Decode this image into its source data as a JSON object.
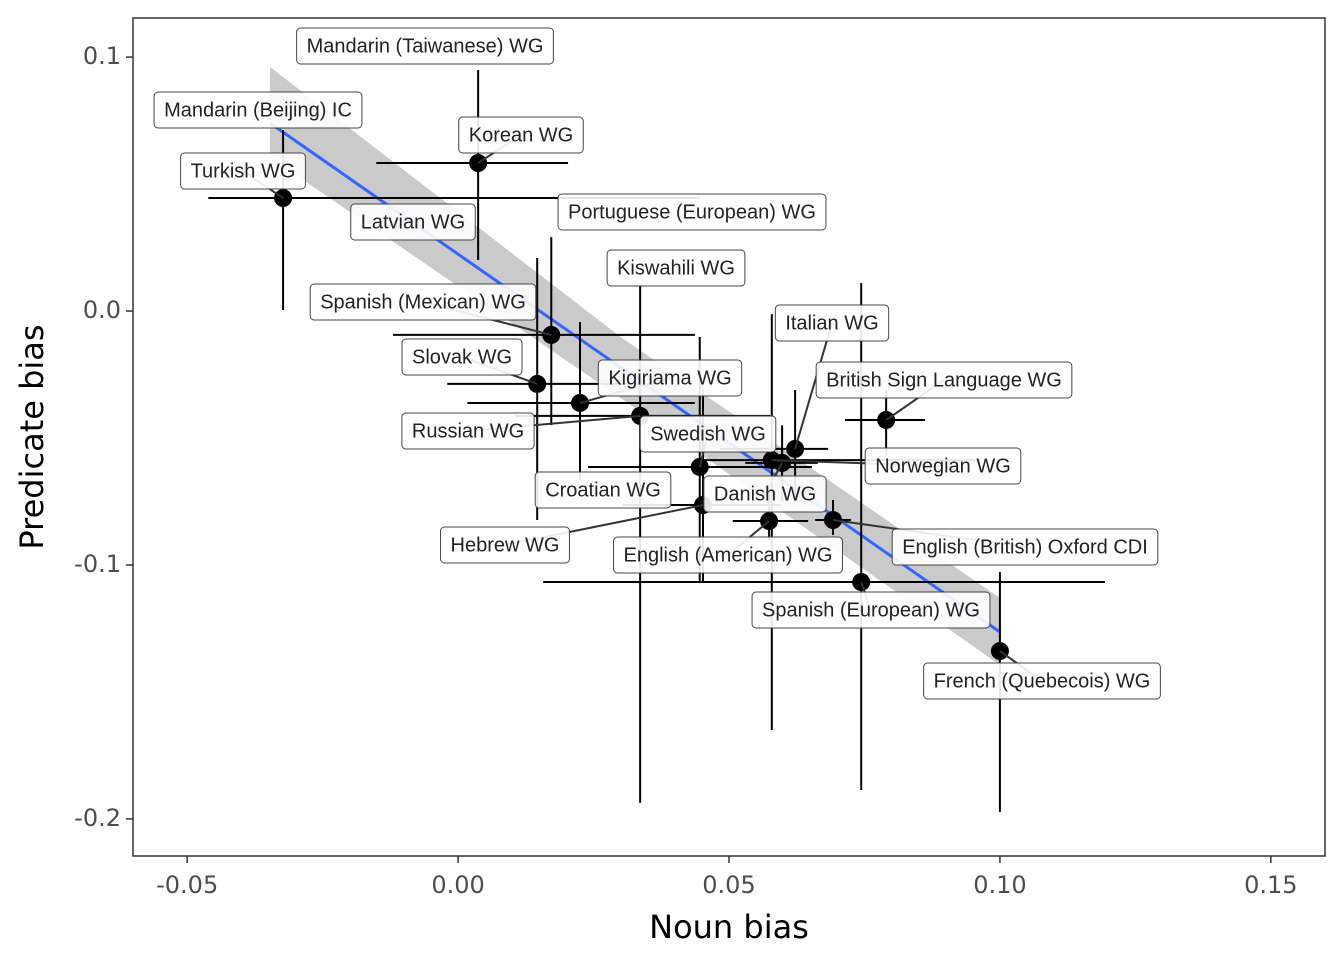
{
  "chart_data": {
    "type": "scatter",
    "x_label": "Noun bias",
    "y_label": "Predicate bias",
    "xlim": [
      -0.06,
      0.16
    ],
    "ylim": [
      -0.2146,
      0.1154
    ],
    "xticks": [
      {
        "value": -0.05,
        "label": "-0.05"
      },
      {
        "value": 0,
        "label": "0.00"
      },
      {
        "value": 0.05,
        "label": "0.05"
      },
      {
        "value": 0.1,
        "label": "0.10"
      },
      {
        "value": 0.15,
        "label": "0.15"
      }
    ],
    "yticks": [
      {
        "value": 0.1,
        "label": "0.1"
      },
      {
        "value": 0,
        "label": "0.0"
      },
      {
        "value": -0.1,
        "label": "-0.1"
      },
      {
        "value": -0.2,
        "label": "-0.2"
      }
    ],
    "color": "#000000",
    "labels": [
      "Mandarin (Taiwanese) WG",
      "Mandarin (Beijing) IC",
      "Korean WG",
      "Turkish WG",
      "Latvian WG",
      "Portuguese (European) WG",
      "Kiswahili WG",
      "Spanish (Mexican) WG",
      "Slovak WG",
      "Kigiriama WG",
      "Russian WG",
      "Swedish WG",
      "Croatian WG",
      "Hebrew WG",
      "Danish WG",
      "Norwegian WG",
      "Italian WG",
      "British Sign Language WG",
      "English (American) WG",
      "English (British) Oxford CDI",
      "Spanish (European) WG",
      "French (Quebecois) WG"
    ],
    "x": [
      null,
      null,
      0.0037,
      -0.0323,
      null,
      null,
      null,
      0.0172,
      0.0146,
      0.0225,
      0.0336,
      0.0446,
      null,
      0.0452,
      0.0598,
      0.0579,
      0.0622,
      0.079,
      0.0574,
      0.0692,
      0.0744,
      0.1
    ],
    "values": [
      null,
      null,
      0.0583,
      0.0445,
      null,
      null,
      null,
      -0.0094,
      -0.0287,
      -0.0362,
      -0.0413,
      -0.0614,
      null,
      -0.0764,
      -0.0598,
      -0.0587,
      -0.0543,
      -0.0429,
      -0.0827,
      -0.0823,
      -0.1067,
      -0.1339
    ],
    "x_low": [
      null,
      null,
      -0.0151,
      -0.0461,
      null,
      null,
      null,
      -0.012,
      -0.002,
      0.0017,
      0.0105,
      0.024,
      null,
      0.0303,
      0.053,
      0.0446,
      0.0483,
      0.0714,
      0.0507,
      0.0659,
      0.0157,
      null
    ],
    "x_high": [
      null,
      null,
      0.0203,
      0.0446,
      null,
      null,
      null,
      0.0437,
      0.0336,
      0.0437,
      0.0576,
      0.0653,
      null,
      0.0596,
      0.0664,
      0.0954,
      0.0683,
      0.0862,
      0.0646,
      0.0725,
      0.1194,
      null
    ],
    "y_low": [
      null,
      null,
      0.0201,
      0.0004,
      null,
      null,
      null,
      -0.0449,
      -0.0823,
      -0.0665,
      -0.1937,
      -0.1071,
      null,
      -0.107,
      -0.075,
      -0.165,
      -0.0756,
      -0.0567,
      -0.0902,
      -0.0882,
      -0.1886,
      -0.1972
    ],
    "y_high": [
      null,
      null,
      0.0949,
      0.0713,
      null,
      null,
      null,
      0.0291,
      0.0209,
      -0.0043,
      0.0102,
      -0.0102,
      null,
      -0.0311,
      -0.045,
      -0.0012,
      -0.0311,
      -0.0311,
      -0.0705,
      -0.0744,
      0.011,
      -0.1028
    ],
    "fit": {
      "color": "#3366ff",
      "band_color": "#bdbdbd",
      "x": [
        -0.0347,
        0.03,
        0.1
      ],
      "y": [
        0.074,
        -0.0222,
        -0.1264
      ],
      "y_low": [
        0.0606,
        -0.0342,
        -0.1394
      ],
      "y_high": [
        0.0961,
        -0.0102,
        -0.113
      ]
    }
  }
}
